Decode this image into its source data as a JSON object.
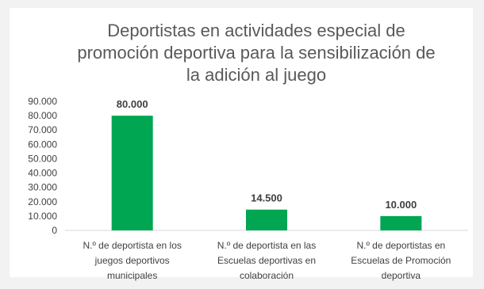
{
  "chart_data": {
    "type": "bar",
    "title_lines": [
      "Deportistas en actividades especial de",
      "promoción deportiva para la sensibilización de",
      "la adición al juego"
    ],
    "categories": [
      [
        "N.º de deportista en los",
        "juegos deportivos",
        "municipales"
      ],
      [
        "N.º de deportista en las",
        "Escuelas deportivas en",
        "colaboración"
      ],
      [
        "N.º de deportistas en",
        "Escuelas de Promoción",
        "deportiva"
      ]
    ],
    "values": [
      80000,
      14500,
      10000
    ],
    "value_labels": [
      "80.000",
      "14.500",
      "10.000"
    ],
    "yticks": [
      0,
      10000,
      20000,
      30000,
      40000,
      50000,
      60000,
      70000,
      80000,
      90000
    ],
    "ytick_labels": [
      "0",
      "10.000",
      "20.000",
      "30.000",
      "40.000",
      "50.000",
      "60.000",
      "70.000",
      "80.000",
      "90.000"
    ],
    "ylim": [
      0,
      90000
    ],
    "bar_color": "#00a651",
    "xlabel": "",
    "ylabel": "",
    "grid": false,
    "legend": "none"
  }
}
